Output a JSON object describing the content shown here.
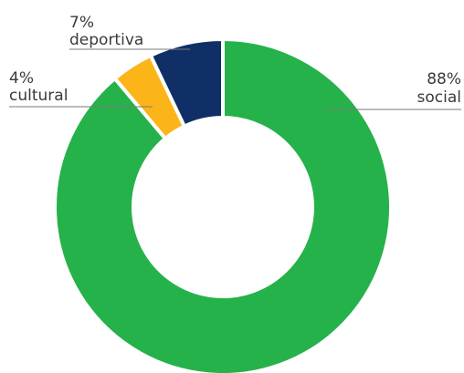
{
  "chart_data": {
    "type": "donut",
    "title": "",
    "legend": "none",
    "series": [
      {
        "category": "social",
        "value": 88,
        "percent_label": "88%",
        "color": "#25b24a"
      },
      {
        "category": "cultural",
        "value": 4,
        "percent_label": "4%",
        "color": "#fbb519"
      },
      {
        "category": "deportiva",
        "value": 7,
        "percent_label": "7%",
        "color": "#0f2f66"
      }
    ]
  }
}
